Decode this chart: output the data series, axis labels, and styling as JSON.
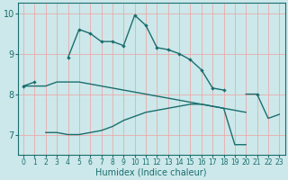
{
  "xlabel": "Humidex (Indice chaleur)",
  "x_values": [
    0,
    1,
    2,
    3,
    4,
    5,
    6,
    7,
    8,
    9,
    10,
    11,
    12,
    13,
    14,
    15,
    16,
    17,
    18,
    19,
    20,
    21,
    22,
    23
  ],
  "line_marked": [
    8.2,
    8.3,
    null,
    null,
    8.9,
    9.6,
    9.5,
    9.3,
    9.3,
    9.2,
    9.95,
    9.7,
    9.15,
    9.1,
    9.0,
    8.85,
    8.6,
    8.15,
    8.1,
    null,
    null,
    8.0,
    null,
    null
  ],
  "line_upper_flat": [
    8.2,
    8.2,
    8.2,
    8.3,
    8.3,
    8.3,
    8.25,
    8.2,
    8.15,
    8.1,
    8.05,
    8.0,
    7.95,
    7.9,
    7.85,
    7.8,
    7.75,
    7.7,
    7.65,
    7.6,
    7.55,
    null,
    null,
    null
  ],
  "line_lower_rise": [
    null,
    null,
    7.05,
    7.05,
    7.0,
    7.0,
    7.05,
    7.1,
    7.2,
    7.35,
    7.45,
    7.55,
    7.6,
    7.65,
    7.7,
    7.75,
    7.75,
    7.7,
    7.65,
    6.75,
    6.75,
    null,
    null,
    null
  ],
  "line_right_end": [
    null,
    null,
    null,
    null,
    null,
    null,
    null,
    null,
    null,
    null,
    null,
    null,
    null,
    null,
    null,
    null,
    null,
    null,
    null,
    null,
    8.0,
    8.0,
    7.4,
    7.5
  ],
  "line_lower_right": [
    null,
    null,
    null,
    null,
    null,
    null,
    null,
    null,
    null,
    null,
    null,
    null,
    null,
    null,
    null,
    null,
    null,
    null,
    null,
    null,
    null,
    null,
    7.4,
    7.5
  ],
  "bg_color": "#cce8ea",
  "line_color": "#1a6e6e",
  "grid_color": "#f0a0a0",
  "ylim": [
    6.5,
    10.25
  ],
  "xlim": [
    -0.5,
    23.5
  ],
  "yticks": [
    7,
    8,
    9,
    10
  ],
  "xticks": [
    0,
    1,
    2,
    3,
    4,
    5,
    6,
    7,
    8,
    9,
    10,
    11,
    12,
    13,
    14,
    15,
    16,
    17,
    18,
    19,
    20,
    21,
    22,
    23
  ]
}
